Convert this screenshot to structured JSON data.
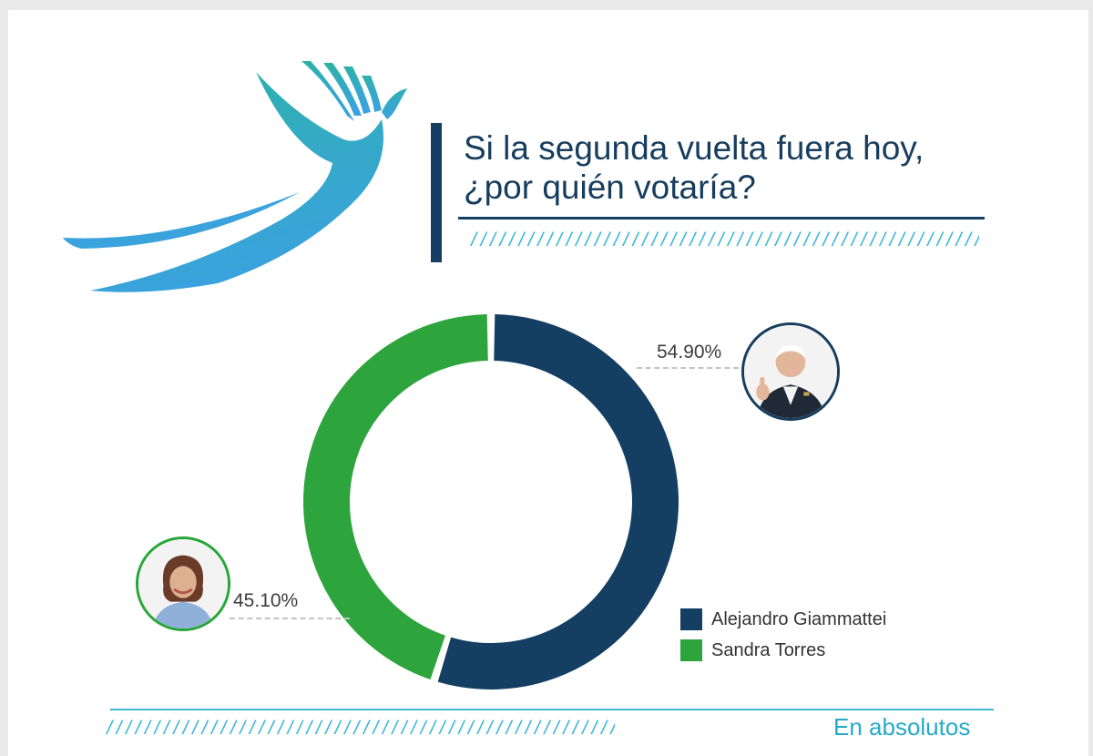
{
  "title": {
    "line1": "Si la segunda vuelta fuera hoy,",
    "line2": "¿por quién votaría?"
  },
  "decor": {
    "hatch": "//////////////////////////////////////////////////////////////////////////////////////////////////////////////////"
  },
  "footer": {
    "note": "En absolutos"
  },
  "logo": {
    "icon": "hand-bird-icon",
    "colors": [
      "#2bb3a4",
      "#3aa2dd"
    ]
  },
  "colors": {
    "navy": "#143f63",
    "green": "#2ea43c",
    "accent": "#3fb8d8"
  },
  "chart_data": {
    "type": "pie",
    "style": "donut",
    "unit": "%",
    "series": [
      {
        "name": "Alejandro Giammattei",
        "value": 54.9,
        "label": "54.90%",
        "color": "#143f63",
        "photo_icon": "man-portrait-icon"
      },
      {
        "name": "Sandra Torres",
        "value": 45.1,
        "label": "45.10%",
        "color": "#2ea43c",
        "photo_icon": "woman-portrait-icon"
      }
    ],
    "legend_position": "bottom-right"
  }
}
